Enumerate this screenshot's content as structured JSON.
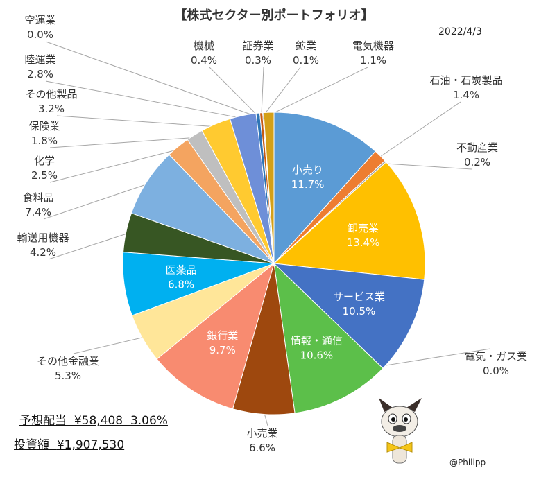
{
  "title": "【株式セクター別ポートフォリオ】",
  "date": "2022/4/3",
  "summary": {
    "dividend_label": "予想配当",
    "dividend_amount": "¥58,408",
    "dividend_yield": "3.06%",
    "investment_label": "投資額",
    "investment_amount": "¥1,907,530"
  },
  "credit": "@Philipp",
  "chart_data": {
    "type": "pie",
    "start_angle_deg": 0,
    "direction": "clockwise",
    "slices": [
      {
        "label": "小売り",
        "value": 11.7,
        "pct_text": "11.7%",
        "color": "#5B9BD5",
        "label_position": "inside"
      },
      {
        "label": "石油・石炭製品",
        "value": 1.4,
        "pct_text": "1.4%",
        "color": "#ED7D31",
        "label_position": "outside"
      },
      {
        "label": "不動産業",
        "value": 0.2,
        "pct_text": "0.2%",
        "color": "#A5A5A5",
        "label_position": "outside"
      },
      {
        "label": "卸売業",
        "value": 13.4,
        "pct_text": "13.4%",
        "color": "#FFC000",
        "label_position": "inside"
      },
      {
        "label": "サービス業",
        "value": 10.5,
        "pct_text": "10.5%",
        "color": "#4472C4",
        "label_position": "inside"
      },
      {
        "label": "電気・ガス業",
        "value": 0.0,
        "pct_text": "0.0%",
        "color": "#70AD47",
        "label_position": "outside"
      },
      {
        "label": "情報・通信",
        "value": 10.6,
        "pct_text": "10.6%",
        "color": "#5CBF4A",
        "label_position": "inside"
      },
      {
        "label": "小売業",
        "value": 6.6,
        "pct_text": "6.6%",
        "color": "#9E480E",
        "label_position": "outside"
      },
      {
        "label": "銀行業",
        "value": 9.7,
        "pct_text": "9.7%",
        "color": "#F88B70",
        "label_position": "inside"
      },
      {
        "label": "その他金融業",
        "value": 5.3,
        "pct_text": "5.3%",
        "color": "#FFE699",
        "label_position": "outside"
      },
      {
        "label": "医薬品",
        "value": 6.8,
        "pct_text": "6.8%",
        "color": "#00B0F0",
        "label_position": "inside"
      },
      {
        "label": "輸送用機器",
        "value": 4.2,
        "pct_text": "4.2%",
        "color": "#375623",
        "label_position": "outside"
      },
      {
        "label": "食料品",
        "value": 7.4,
        "pct_text": "7.4%",
        "color": "#7DB0E0",
        "label_position": "outside"
      },
      {
        "label": "化学",
        "value": 2.5,
        "pct_text": "2.5%",
        "color": "#F4A460",
        "label_position": "outside"
      },
      {
        "label": "保険業",
        "value": 1.8,
        "pct_text": "1.8%",
        "color": "#BFBFBF",
        "label_position": "outside"
      },
      {
        "label": "その他製品",
        "value": 3.2,
        "pct_text": "3.2%",
        "color": "#FFCA30",
        "label_position": "outside"
      },
      {
        "label": "陸運業",
        "value": 2.8,
        "pct_text": "2.8%",
        "color": "#6E8FD8",
        "label_position": "outside"
      },
      {
        "label": "空運業",
        "value": 0.0,
        "pct_text": "0.0%",
        "color": "#7030A0",
        "label_position": "outside"
      },
      {
        "label": "機械",
        "value": 0.4,
        "pct_text": "0.4%",
        "color": "#2E75B6",
        "label_position": "outside"
      },
      {
        "label": "証券業",
        "value": 0.3,
        "pct_text": "0.3%",
        "color": "#C55A11",
        "label_position": "outside"
      },
      {
        "label": "鉱業",
        "value": 0.1,
        "pct_text": "0.1%",
        "color": "#7F7F7F",
        "label_position": "outside"
      },
      {
        "label": "電気機器",
        "value": 1.1,
        "pct_text": "1.1%",
        "color": "#D4A017",
        "label_position": "outside"
      }
    ]
  }
}
